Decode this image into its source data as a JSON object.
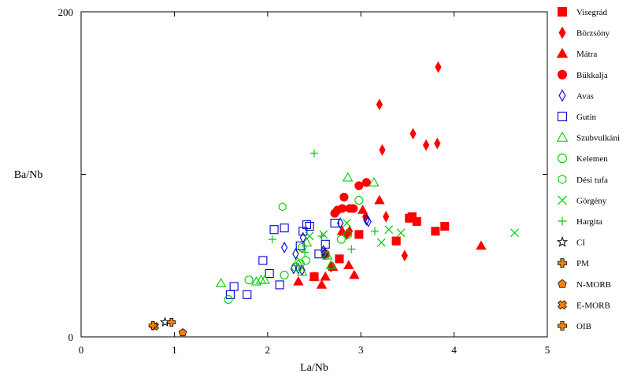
{
  "chart_data": {
    "type": "scatter",
    "title": "",
    "xlabel": "La/Nb",
    "ylabel": "Ba/Nb",
    "xlim": [
      0,
      5
    ],
    "ylim": [
      0,
      200
    ],
    "x_ticks": [
      "0",
      "1",
      "2",
      "3",
      "4",
      "5"
    ],
    "y_tick_labels": [
      "0",
      "200"
    ],
    "y_ticks_unlabeled": [
      100
    ],
    "grid": false,
    "legend_position": "right",
    "series": [
      {
        "name": "Visegrád",
        "marker": "square-filled",
        "color": "#ff0000",
        "points": [
          [
            2.5,
            37
          ],
          [
            2.77,
            48
          ],
          [
            2.98,
            63
          ],
          [
            3.38,
            59
          ],
          [
            3.52,
            73
          ],
          [
            3.55,
            74
          ],
          [
            3.6,
            71
          ],
          [
            3.8,
            65
          ],
          [
            3.9,
            68
          ]
        ]
      },
      {
        "name": "Börzsöny",
        "marker": "diamond-filled",
        "color": "#ff0000",
        "points": [
          [
            2.68,
            43
          ],
          [
            2.85,
            63
          ],
          [
            2.88,
            65
          ],
          [
            3.05,
            74
          ],
          [
            3.2,
            143
          ],
          [
            3.23,
            115
          ],
          [
            3.27,
            74
          ],
          [
            3.47,
            50
          ],
          [
            3.56,
            125
          ],
          [
            3.7,
            118
          ],
          [
            3.82,
            119
          ],
          [
            3.83,
            166
          ]
        ]
      },
      {
        "name": "Mátra",
        "marker": "triangle-filled",
        "color": "#ff0000",
        "points": [
          [
            2.33,
            34
          ],
          [
            2.5,
            37
          ],
          [
            2.58,
            32
          ],
          [
            2.62,
            37
          ],
          [
            2.7,
            43
          ],
          [
            2.8,
            65
          ],
          [
            2.87,
            44
          ],
          [
            2.93,
            38
          ],
          [
            3.02,
            78
          ],
          [
            3.2,
            84
          ],
          [
            4.29,
            56
          ]
        ]
      },
      {
        "name": "Bükkalja",
        "marker": "circle-filled",
        "color": "#ff0000",
        "points": [
          [
            2.62,
            51
          ],
          [
            2.72,
            76
          ],
          [
            2.75,
            78
          ],
          [
            2.8,
            79
          ],
          [
            2.82,
            86
          ],
          [
            2.88,
            79
          ],
          [
            2.92,
            79
          ],
          [
            2.98,
            93
          ],
          [
            3.06,
            95
          ]
        ]
      },
      {
        "name": "Avas",
        "marker": "diamond-open",
        "color": "#0000cc",
        "points": [
          [
            2.18,
            55
          ],
          [
            2.28,
            42
          ],
          [
            2.3,
            51
          ],
          [
            2.33,
            42
          ],
          [
            2.37,
            41
          ],
          [
            2.38,
            61
          ],
          [
            2.6,
            53
          ],
          [
            2.61,
            51
          ],
          [
            2.78,
            70
          ],
          [
            3.06,
            72
          ],
          [
            3.08,
            71
          ]
        ]
      },
      {
        "name": "Gutin",
        "marker": "square-open",
        "color": "#0000cc",
        "points": [
          [
            1.6,
            26
          ],
          [
            1.64,
            31
          ],
          [
            1.78,
            26
          ],
          [
            1.95,
            47
          ],
          [
            2.02,
            39
          ],
          [
            2.07,
            66
          ],
          [
            2.13,
            32
          ],
          [
            2.18,
            67
          ],
          [
            2.35,
            56
          ],
          [
            2.38,
            65
          ],
          [
            2.42,
            69
          ],
          [
            2.45,
            68
          ],
          [
            2.55,
            51
          ],
          [
            2.62,
            57
          ],
          [
            2.72,
            70
          ]
        ]
      },
      {
        "name": "Szubvulkáni",
        "marker": "triangle-open",
        "color": "#00cc00",
        "points": [
          [
            1.5,
            33
          ],
          [
            1.88,
            34
          ],
          [
            1.93,
            35
          ],
          [
            1.97,
            35
          ],
          [
            2.32,
            46
          ],
          [
            2.37,
            40
          ],
          [
            2.42,
            58
          ],
          [
            2.64,
            50
          ],
          [
            2.68,
            44
          ],
          [
            2.86,
            98
          ],
          [
            3.14,
            95
          ]
        ]
      },
      {
        "name": "Kelemen",
        "marker": "circle-open",
        "color": "#00cc00",
        "points": [
          [
            1.58,
            23
          ],
          [
            1.8,
            35
          ],
          [
            2.18,
            38
          ],
          [
            2.3,
            43
          ],
          [
            2.35,
            45
          ],
          [
            2.37,
            55
          ],
          [
            2.41,
            47
          ],
          [
            2.62,
            50
          ],
          [
            2.79,
            60
          ],
          [
            2.86,
            63
          ],
          [
            2.98,
            84
          ]
        ]
      },
      {
        "name": "Dési tufa",
        "marker": "hexagon-open",
        "color": "#00cc00",
        "points": [
          [
            2.16,
            80
          ]
        ]
      },
      {
        "name": "Görgény",
        "marker": "x-cross",
        "color": "#00cc00",
        "points": [
          [
            2.45,
            62
          ],
          [
            2.6,
            63
          ],
          [
            2.85,
            70
          ],
          [
            3.22,
            58
          ],
          [
            3.3,
            66
          ],
          [
            3.43,
            64
          ],
          [
            4.65,
            64
          ]
        ]
      },
      {
        "name": "Hargita",
        "marker": "plus",
        "color": "#00cc00",
        "points": [
          [
            2.05,
            60
          ],
          [
            2.4,
            52
          ],
          [
            2.5,
            113
          ],
          [
            2.58,
            62
          ],
          [
            2.9,
            54
          ],
          [
            3.15,
            65
          ]
        ]
      },
      {
        "name": "CI",
        "marker": "star-open",
        "color": "#000000",
        "points": [
          [
            0.9,
            9
          ]
        ]
      },
      {
        "name": "PM",
        "marker": "cross-filled",
        "color": "#ff8000",
        "points": [
          [
            0.97,
            9
          ]
        ]
      },
      {
        "name": "N-MORB",
        "marker": "pentagon-filled",
        "color": "#ff8000",
        "points": [
          [
            1.09,
            2.6
          ]
        ]
      },
      {
        "name": "E-MORB",
        "marker": "x-filled",
        "color": "#ff8000",
        "points": [
          [
            0.79,
            6.5
          ]
        ]
      },
      {
        "name": "OIB",
        "marker": "cross-filled",
        "color": "#ff8000",
        "points": [
          [
            0.77,
            7
          ]
        ]
      }
    ]
  }
}
